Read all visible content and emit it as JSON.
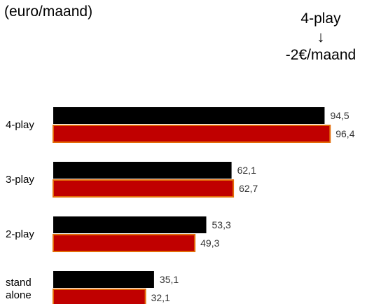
{
  "unit_label": "(euro/maand)",
  "callout": {
    "title": "4-play",
    "arrow": "↓",
    "delta": "-2€/maand"
  },
  "colors": {
    "series_1": "#000000",
    "series_2": "#c00000",
    "series_2_border": "#e36c09"
  },
  "chart_data": {
    "type": "bar",
    "orientation": "horizontal",
    "categories": [
      "4-play",
      "3-play",
      "2-play",
      "stand alone"
    ],
    "series": [
      {
        "values": [
          94.5,
          62.1,
          53.3,
          35.1
        ],
        "labels": [
          "94,5",
          "62,1",
          "53,3",
          "35,1"
        ]
      },
      {
        "values": [
          96.4,
          62.7,
          49.3,
          32.1
        ],
        "labels": [
          "96,4",
          "62,7",
          "49,3",
          "32,1"
        ]
      }
    ],
    "xlim": [
      0,
      100
    ],
    "grid": false
  }
}
